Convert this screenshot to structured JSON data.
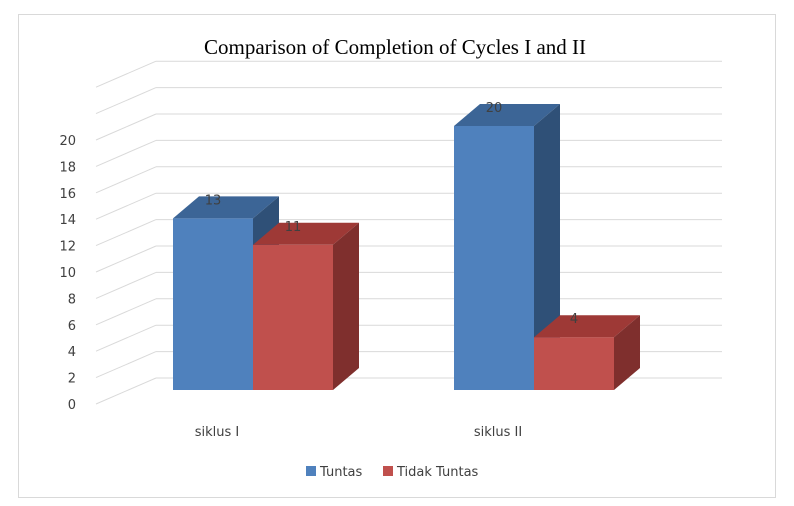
{
  "chart_data": {
    "type": "bar",
    "title": "Comparison of Completion of Cycles I and II",
    "categories": [
      "siklus I",
      "siklus II"
    ],
    "series": [
      {
        "name": "Tuntas",
        "values": [
          13,
          20
        ],
        "color": "#4f81bd",
        "top_color": "#3c6596",
        "side_color": "#2f5077"
      },
      {
        "name": "Tidak Tuntas",
        "values": [
          11,
          4
        ],
        "color": "#c0504d",
        "top_color": "#9e3936",
        "side_color": "#7f2f2d"
      }
    ],
    "ylim": [
      0,
      20
    ],
    "y_ticks": [
      "0",
      "2",
      "4",
      "6",
      "8",
      "10",
      "12",
      "14",
      "16",
      "18",
      "20"
    ],
    "grid": true,
    "legend": "bottom",
    "style": "3d-column"
  }
}
